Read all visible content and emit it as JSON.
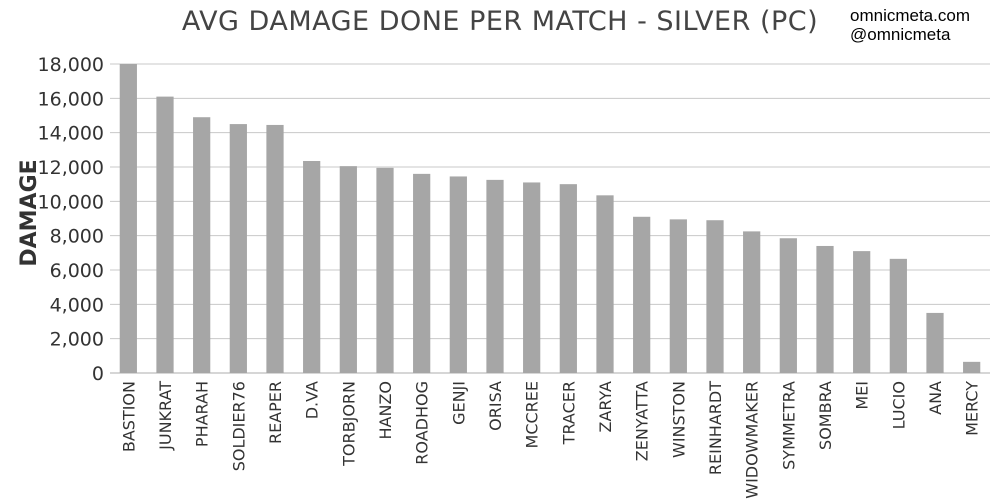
{
  "header": {
    "title": "AVG DAMAGE DONE PER MATCH - SILVER (PC)",
    "site": "omnicmeta.com",
    "handle": "@omnicmeta"
  },
  "colors": {
    "bar": "#a6a6a6",
    "grid": "#c8c8c8",
    "text": "#333333"
  },
  "chart_data": {
    "type": "bar",
    "title": "AVG DAMAGE DONE PER MATCH - SILVER (PC)",
    "xlabel": "",
    "ylabel": "DAMAGE",
    "ylim": [
      0,
      18000
    ],
    "yticks": [
      0,
      2000,
      4000,
      6000,
      8000,
      10000,
      12000,
      14000,
      16000,
      18000
    ],
    "ytick_labels": [
      "0",
      "2,000",
      "4,000",
      "6,000",
      "8,000",
      "10,000",
      "12,000",
      "14,000",
      "16,000",
      "18,000"
    ],
    "grid": true,
    "legend": "none",
    "categories": [
      "BASTION",
      "JUNKRAT",
      "PHARAH",
      "SOLDIER76",
      "REAPER",
      "D.VA",
      "TORBJORN",
      "HANZO",
      "ROADHOG",
      "GENJI",
      "ORISA",
      "MCCREE",
      "TRACER",
      "ZARYA",
      "ZENYATTA",
      "WINSTON",
      "REINHARDT",
      "WIDOWMAKER",
      "SYMMETRA",
      "SOMBRA",
      "MEI",
      "LUCIO",
      "ANA",
      "MERCY"
    ],
    "values": [
      18000,
      16100,
      14900,
      14500,
      14450,
      12350,
      12050,
      11950,
      11600,
      11450,
      11250,
      11100,
      11000,
      10350,
      9100,
      8950,
      8900,
      8250,
      7850,
      7400,
      7100,
      6650,
      3500,
      650
    ]
  }
}
